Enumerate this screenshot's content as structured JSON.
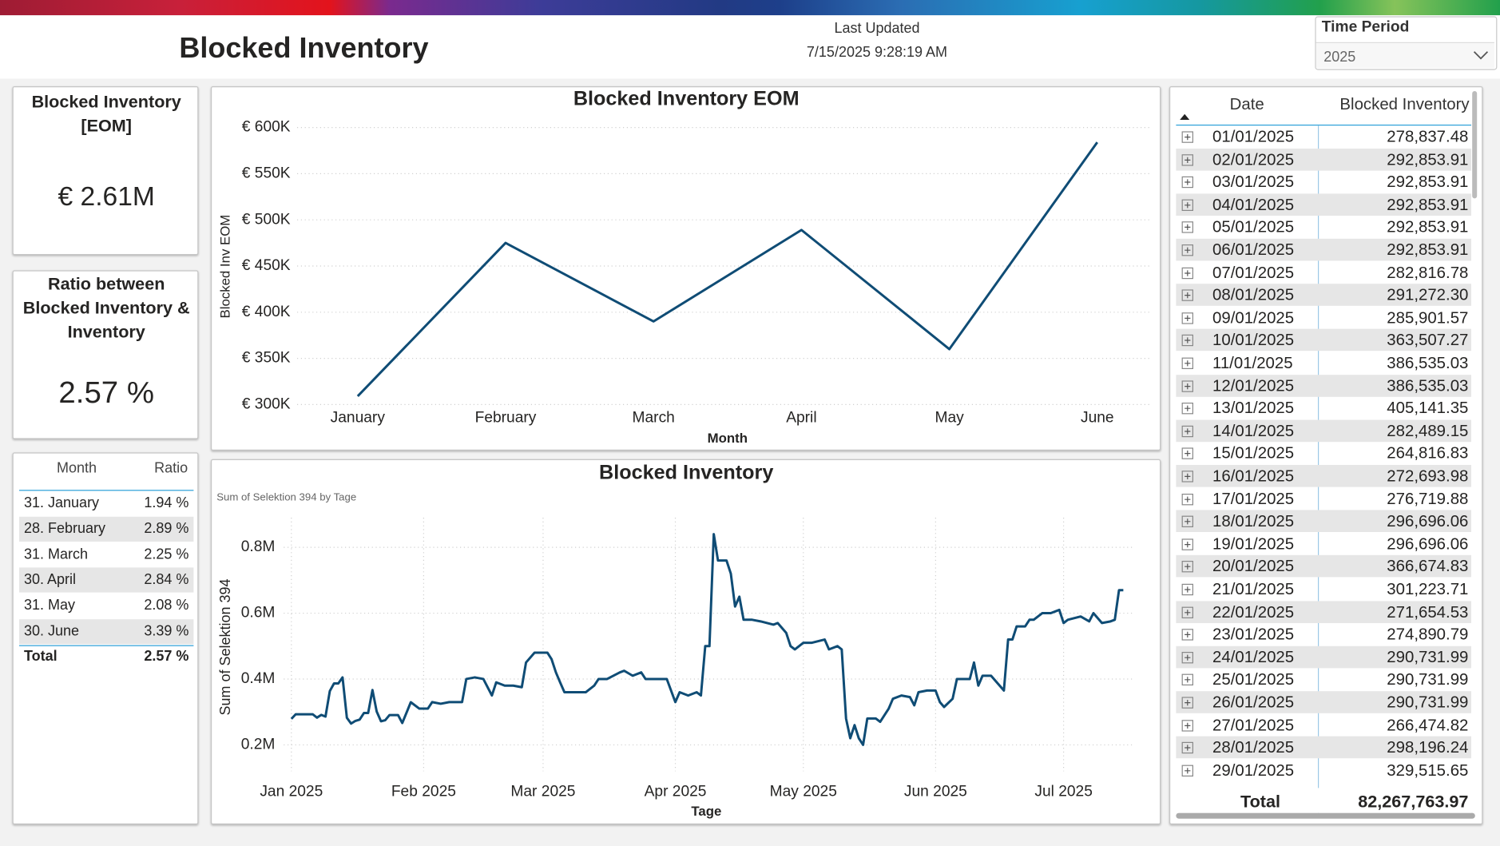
{
  "header": {
    "title": "Blocked Inventory",
    "last_updated_label": "Last Updated",
    "last_updated": "7/15/2025 9:28:19 AM"
  },
  "filter": {
    "label": "Time Period",
    "value": "2025"
  },
  "cards": [
    {
      "title": "Blocked Inventory [EOM]",
      "value": "€ 2.61M"
    },
    {
      "title": "Ratio between Blocked Inventory & Inventory",
      "value": "2.57 %"
    }
  ],
  "ratio_table": {
    "columns": [
      "Month",
      "Ratio"
    ],
    "rows": [
      [
        "31. January",
        "1.94 %"
      ],
      [
        "28. February",
        "2.89 %"
      ],
      [
        "31. March",
        "2.25 %"
      ],
      [
        "30. April",
        "2.84 %"
      ],
      [
        "31. May",
        "2.08 %"
      ],
      [
        "30. June",
        "3.39 %"
      ]
    ],
    "total": [
      "Total",
      "2.57 %"
    ]
  },
  "daily_table": {
    "columns": [
      "Date",
      "Blocked Inventory"
    ],
    "rows": [
      [
        "01/01/2025",
        "278,837.48"
      ],
      [
        "02/01/2025",
        "292,853.91"
      ],
      [
        "03/01/2025",
        "292,853.91"
      ],
      [
        "04/01/2025",
        "292,853.91"
      ],
      [
        "05/01/2025",
        "292,853.91"
      ],
      [
        "06/01/2025",
        "292,853.91"
      ],
      [
        "07/01/2025",
        "282,816.78"
      ],
      [
        "08/01/2025",
        "291,272.30"
      ],
      [
        "09/01/2025",
        "285,901.57"
      ],
      [
        "10/01/2025",
        "363,507.27"
      ],
      [
        "11/01/2025",
        "386,535.03"
      ],
      [
        "12/01/2025",
        "386,535.03"
      ],
      [
        "13/01/2025",
        "405,141.35"
      ],
      [
        "14/01/2025",
        "282,489.15"
      ],
      [
        "15/01/2025",
        "264,816.83"
      ],
      [
        "16/01/2025",
        "272,693.98"
      ],
      [
        "17/01/2025",
        "276,719.88"
      ],
      [
        "18/01/2025",
        "296,696.06"
      ],
      [
        "19/01/2025",
        "296,696.06"
      ],
      [
        "20/01/2025",
        "366,674.83"
      ],
      [
        "21/01/2025",
        "301,223.71"
      ],
      [
        "22/01/2025",
        "271,654.53"
      ],
      [
        "23/01/2025",
        "274,890.79"
      ],
      [
        "24/01/2025",
        "290,731.99"
      ],
      [
        "25/01/2025",
        "290,731.99"
      ],
      [
        "26/01/2025",
        "290,731.99"
      ],
      [
        "27/01/2025",
        "266,474.82"
      ],
      [
        "28/01/2025",
        "298,196.24"
      ],
      [
        "29/01/2025",
        "329,515.65"
      ]
    ],
    "total": [
      "Total",
      "82,267,763.97"
    ]
  },
  "chart_data": [
    {
      "type": "line",
      "title": "Blocked Inventory EOM",
      "x_label": "Month",
      "y_label": "Blocked Inv EOM",
      "categories": [
        "January",
        "February",
        "March",
        "April",
        "May",
        "June"
      ],
      "values": [
        309000,
        475000,
        390000,
        489000,
        360000,
        584000
      ],
      "color": "#0f4c75",
      "ylim": [
        300000,
        600000
      ],
      "yticks": [
        {
          "value": 300000,
          "label": "€ 300K"
        },
        {
          "value": 350000,
          "label": "€ 350K"
        },
        {
          "value": 400000,
          "label": "€ 400K"
        },
        {
          "value": 450000,
          "label": "€ 450K"
        },
        {
          "value": 500000,
          "label": "€ 500K"
        },
        {
          "value": 550000,
          "label": "€ 550K"
        },
        {
          "value": 600000,
          "label": "€ 600K"
        }
      ],
      "grid": true
    },
    {
      "type": "line",
      "title": "Blocked Inventory",
      "subtitle": "Sum of Selektion 394 by Tage",
      "x_label": "Tage",
      "y_label": "Sum of Selektion 394",
      "x": [
        "01/01/2025",
        "02/01/2025",
        "03/01/2025",
        "04/01/2025",
        "05/01/2025",
        "06/01/2025",
        "07/01/2025",
        "08/01/2025",
        "09/01/2025",
        "10/01/2025",
        "11/01/2025",
        "12/01/2025",
        "13/01/2025",
        "14/01/2025",
        "15/01/2025",
        "16/01/2025",
        "17/01/2025",
        "18/01/2025",
        "19/01/2025",
        "20/01/2025",
        "21/01/2025",
        "22/01/2025",
        "23/01/2025",
        "24/01/2025",
        "25/01/2025",
        "26/01/2025",
        "27/01/2025",
        "28/01/2025",
        "29/01/2025",
        "31/01/2025",
        "02/02/2025",
        "03/02/2025",
        "05/02/2025",
        "07/02/2025",
        "10/02/2025",
        "11/02/2025",
        "13/02/2025",
        "15/02/2025",
        "17/02/2025",
        "18/02/2025",
        "20/02/2025",
        "22/02/2025",
        "24/02/2025",
        "25/02/2025",
        "27/02/2025",
        "02/03/2025",
        "03/03/2025",
        "04/03/2025",
        "05/03/2025",
        "06/03/2025",
        "09/03/2025",
        "11/03/2025",
        "13/03/2025",
        "14/03/2025",
        "16/03/2025",
        "19/03/2025",
        "20/03/2025",
        "22/03/2025",
        "24/03/2025",
        "25/03/2025",
        "27/03/2025",
        "30/03/2025",
        "01/04/2025",
        "02/04/2025",
        "04/04/2025",
        "06/04/2025",
        "07/04/2025",
        "08/04/2025",
        "09/04/2025",
        "10/04/2025",
        "11/04/2025",
        "13/04/2025",
        "14/04/2025",
        "15/04/2025",
        "16/04/2025",
        "17/04/2025",
        "19/04/2025",
        "21/04/2025",
        "24/04/2025",
        "25/04/2025",
        "27/04/2025",
        "28/04/2025",
        "29/04/2025",
        "01/05/2025",
        "03/05/2025",
        "06/05/2025",
        "07/05/2025",
        "09/05/2025",
        "10/05/2025",
        "11/05/2025",
        "12/05/2025",
        "13/05/2025",
        "14/05/2025",
        "15/05/2025",
        "16/05/2025",
        "18/05/2025",
        "19/05/2025",
        "21/05/2025",
        "22/05/2025",
        "24/05/2025",
        "26/05/2025",
        "27/05/2025",
        "28/05/2025",
        "30/05/2025",
        "01/06/2025",
        "02/06/2025",
        "03/06/2025",
        "05/06/2025",
        "06/06/2025",
        "09/06/2025",
        "10/06/2025",
        "11/06/2025",
        "12/06/2025",
        "14/06/2025",
        "17/06/2025",
        "18/06/2025",
        "19/06/2025",
        "20/06/2025",
        "22/06/2025",
        "23/06/2025",
        "24/06/2025",
        "26/06/2025",
        "28/06/2025",
        "30/06/2025",
        "01/07/2025",
        "02/07/2025",
        "05/07/2025",
        "07/07/2025",
        "08/07/2025",
        "10/07/2025",
        "12/07/2025",
        "13/07/2025",
        "14/07/2025",
        "15/07/2025"
      ],
      "values": [
        278837.48,
        292853.91,
        292853.91,
        292853.91,
        292853.91,
        292853.91,
        282816.78,
        291272.3,
        285901.57,
        363507.27,
        386535.03,
        386535.03,
        405141.35,
        282489.15,
        264816.83,
        272693.98,
        276719.88,
        296696.06,
        296696.06,
        366674.83,
        301223.71,
        271654.53,
        274890.79,
        290731.99,
        290731.99,
        290731.99,
        266474.82,
        298196.24,
        329515.65,
        310000,
        310000,
        330000,
        325000,
        330000,
        330000,
        400000,
        405000,
        400000,
        350000,
        390000,
        380000,
        380000,
        375000,
        450000,
        480000,
        480000,
        460000,
        420000,
        390000,
        360000,
        360000,
        360000,
        380000,
        400000,
        400000,
        420000,
        425000,
        410000,
        420000,
        400000,
        400000,
        400000,
        330000,
        360000,
        350000,
        360000,
        350000,
        500000,
        500000,
        840000,
        760000,
        760000,
        720000,
        620000,
        650000,
        580000,
        580000,
        575000,
        565000,
        570000,
        540000,
        500000,
        490000,
        510000,
        510000,
        520000,
        490000,
        500000,
        490000,
        280000,
        220000,
        260000,
        220000,
        200000,
        280000,
        280000,
        270000,
        310000,
        340000,
        350000,
        345000,
        320000,
        360000,
        365000,
        365000,
        330000,
        315000,
        340000,
        400000,
        400000,
        450000,
        380000,
        410000,
        410000,
        365000,
        520000,
        520000,
        560000,
        560000,
        580000,
        580000,
        600000,
        600000,
        610000,
        570000,
        580000,
        590000,
        575000,
        600000,
        570000,
        575000,
        580000,
        670000,
        670000
      ],
      "color": "#0f4c75",
      "xlim": [
        "01/01/2025",
        "15/07/2025"
      ],
      "xticks": [
        {
          "value": "01/01/2025",
          "label": "Jan 2025"
        },
        {
          "value": "01/02/2025",
          "label": "Feb 2025"
        },
        {
          "value": "01/03/2025",
          "label": "Mar 2025"
        },
        {
          "value": "01/04/2025",
          "label": "Apr 2025"
        },
        {
          "value": "01/05/2025",
          "label": "May 2025"
        },
        {
          "value": "01/06/2025",
          "label": "Jun 2025"
        },
        {
          "value": "01/07/2025",
          "label": "Jul 2025"
        }
      ],
      "ylim": [
        120000,
        890000
      ],
      "yticks": [
        {
          "value": 200000,
          "label": "0.2M"
        },
        {
          "value": 400000,
          "label": "0.4M"
        },
        {
          "value": 600000,
          "label": "0.6M"
        },
        {
          "value": 800000,
          "label": "0.8M"
        }
      ],
      "grid": true,
      "x_grid": true
    }
  ]
}
